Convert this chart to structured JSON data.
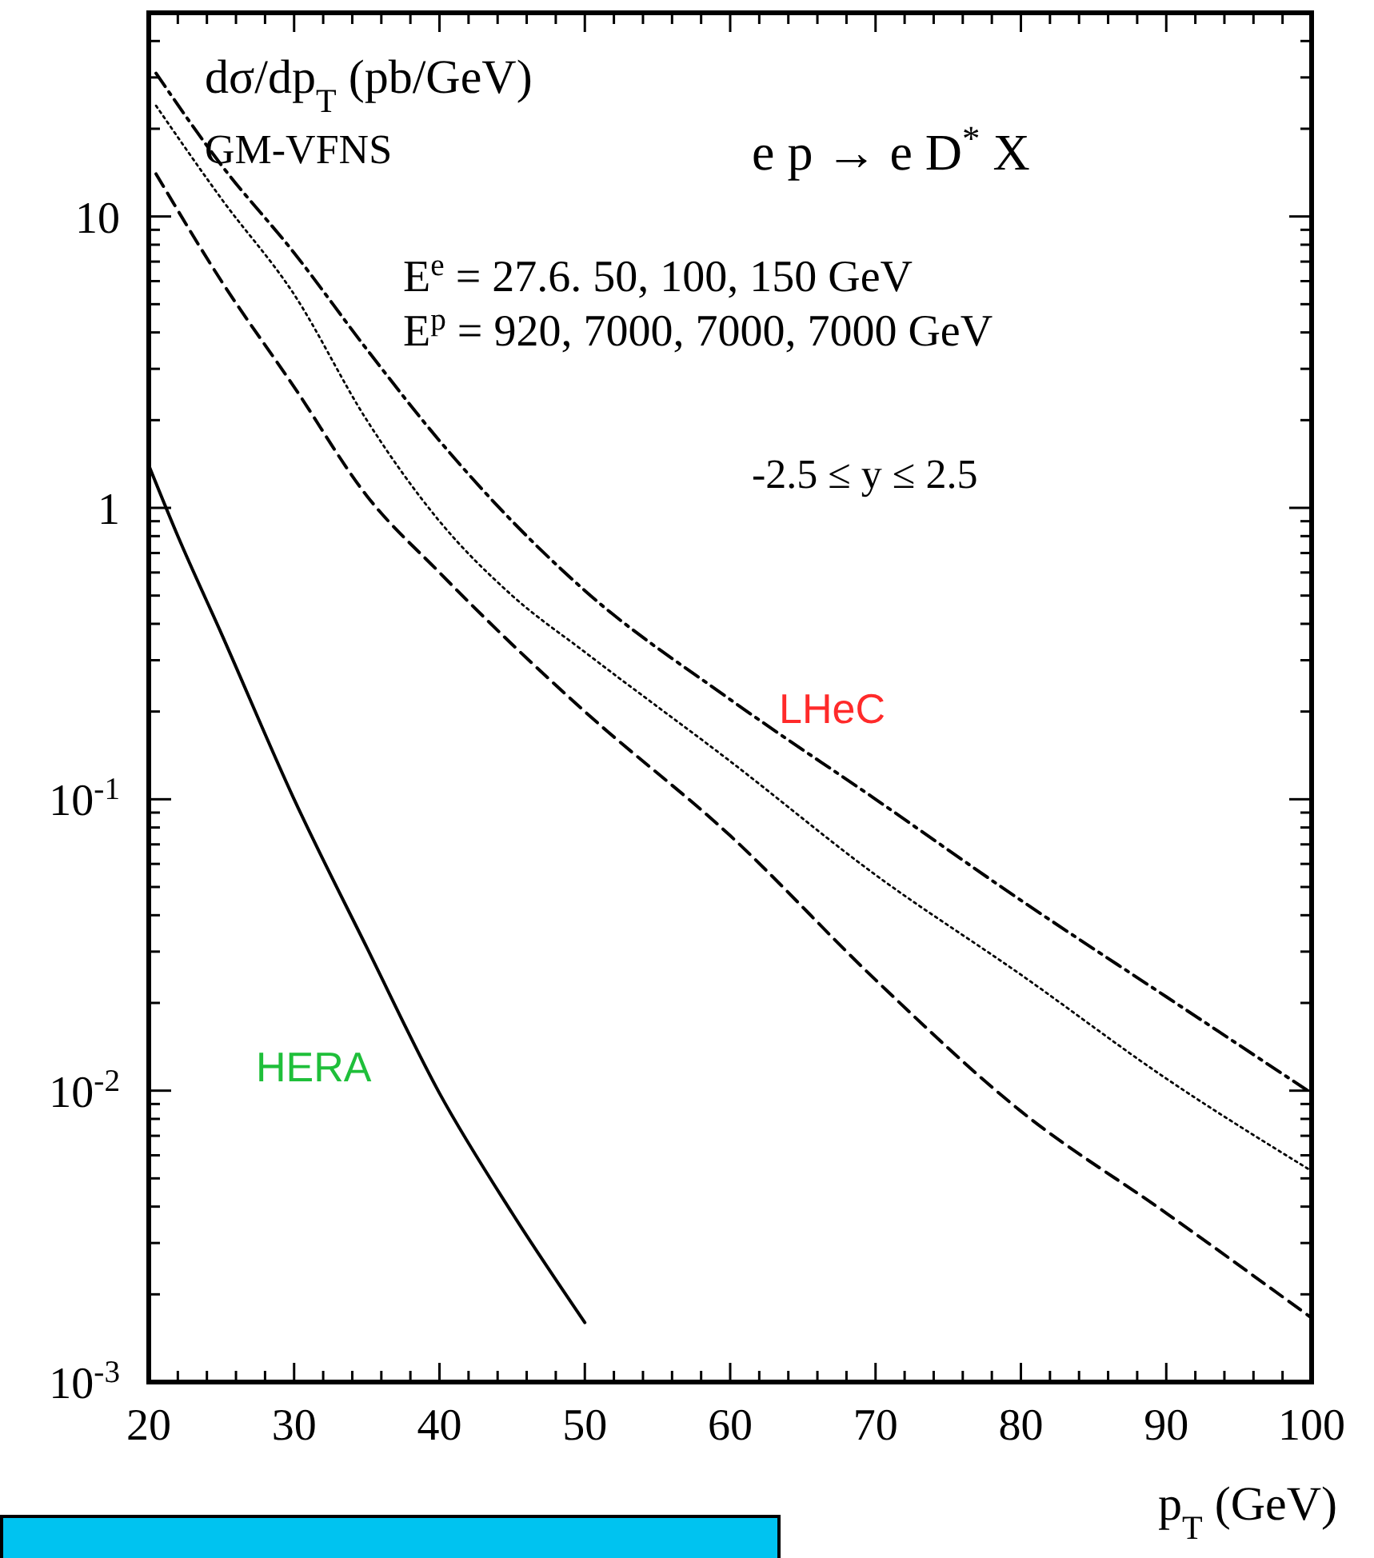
{
  "chart_data": {
    "type": "line",
    "ylabel": "dσ/dp$_{T}$ (pb/GeV)",
    "xlabel": "p$_{T}$ (GeV)",
    "log": "y",
    "xlim": [
      20,
      100
    ],
    "ylim": [
      0.001,
      50
    ],
    "xticks": [
      20,
      {
        "value": 22,
        "label": null
      },
      {
        "value": 24,
        "label": null
      },
      {
        "value": 26,
        "label": null
      },
      {
        "value": 28,
        "label": null
      },
      30,
      {
        "value": 32,
        "label": null
      },
      {
        "value": 34,
        "label": null
      },
      {
        "value": 36,
        "label": null
      },
      {
        "value": 38,
        "label": null
      },
      40,
      {
        "value": 42,
        "label": null
      },
      {
        "value": 44,
        "label": null
      },
      {
        "value": 46,
        "label": null
      },
      {
        "value": 48,
        "label": null
      },
      50,
      {
        "value": 52,
        "label": null
      },
      {
        "value": 54,
        "label": null
      },
      {
        "value": 56,
        "label": null
      },
      {
        "value": 58,
        "label": null
      },
      60,
      {
        "value": 62,
        "label": null
      },
      {
        "value": 64,
        "label": null
      },
      {
        "value": 66,
        "label": null
      },
      {
        "value": 68,
        "label": null
      },
      70,
      {
        "value": 72,
        "label": null
      },
      {
        "value": 74,
        "label": null
      },
      {
        "value": 76,
        "label": null
      },
      {
        "value": 78,
        "label": null
      },
      80,
      {
        "value": 82,
        "label": null
      },
      {
        "value": 84,
        "label": null
      },
      {
        "value": 86,
        "label": null
      },
      {
        "value": 88,
        "label": null
      },
      90,
      {
        "value": 92,
        "label": null
      },
      {
        "value": 94,
        "label": null
      },
      {
        "value": 96,
        "label": null
      },
      {
        "value": 98,
        "label": null
      },
      100
    ],
    "yticks": [
      {
        "value": 0.001,
        "label": "10$^{-3}$"
      },
      {
        "value": 0.002,
        "label": null
      },
      {
        "value": 0.003,
        "label": null
      },
      {
        "value": 0.004,
        "label": null
      },
      {
        "value": 0.005,
        "label": null
      },
      {
        "value": 0.006,
        "label": null
      },
      {
        "value": 0.007,
        "label": null
      },
      {
        "value": 0.008,
        "label": null
      },
      {
        "value": 0.009,
        "label": null
      },
      {
        "value": 0.01,
        "label": "10$^{-2}$"
      },
      {
        "value": 0.02,
        "label": null
      },
      {
        "value": 0.03,
        "label": null
      },
      {
        "value": 0.04,
        "label": null
      },
      {
        "value": 0.05,
        "label": null
      },
      {
        "value": 0.06,
        "label": null
      },
      {
        "value": 0.07,
        "label": null
      },
      {
        "value": 0.08,
        "label": null
      },
      {
        "value": 0.09,
        "label": null
      },
      {
        "value": 0.1,
        "label": "10$^{-1}$"
      },
      {
        "value": 0.2,
        "label": null
      },
      {
        "value": 0.3,
        "label": null
      },
      {
        "value": 0.4,
        "label": null
      },
      {
        "value": 0.5,
        "label": null
      },
      {
        "value": 0.6,
        "label": null
      },
      {
        "value": 0.7,
        "label": null
      },
      {
        "value": 0.8,
        "label": null
      },
      {
        "value": 0.9,
        "label": null
      },
      1,
      {
        "value": 2,
        "label": null
      },
      {
        "value": 3,
        "label": null
      },
      {
        "value": 4,
        "label": null
      },
      {
        "value": 5,
        "label": null
      },
      {
        "value": 6,
        "label": null
      },
      {
        "value": 7,
        "label": null
      },
      {
        "value": 8,
        "label": null
      },
      {
        "value": 9,
        "label": null
      },
      10,
      {
        "value": 20,
        "label": null
      },
      {
        "value": 30,
        "label": null
      },
      {
        "value": 40,
        "label": null
      },
      {
        "value": 50,
        "label": null
      }
    ],
    "series": [
      {
        "color": "#000000",
        "line_style": "solid",
        "x": [
          20,
          22,
          25,
          30,
          35,
          40,
          45,
          50
        ],
        "values": [
          1.4,
          0.8,
          0.37,
          0.1,
          0.031,
          0.0098,
          0.0038,
          0.0016
        ]
      },
      {
        "color": "#000000",
        "line_style": "dashdot",
        "x": [
          20.5,
          25,
          30,
          35,
          40,
          45,
          50,
          60,
          70,
          80,
          90,
          100
        ],
        "values": [
          31,
          15,
          7.5,
          3.5,
          1.7,
          0.9,
          0.52,
          0.22,
          0.1,
          0.045,
          0.021,
          0.0098
        ]
      },
      {
        "color": "#000000",
        "line_style": "dotted",
        "x": [
          20.5,
          25,
          30,
          35,
          40,
          45,
          50,
          60,
          70,
          80,
          90,
          100
        ],
        "values": [
          24,
          11.5,
          5.4,
          2,
          0.9,
          0.5,
          0.32,
          0.135,
          0.055,
          0.025,
          0.011,
          0.0053
        ]
      },
      {
        "color": "#000000",
        "line_style": "dashed",
        "x": [
          20.5,
          25,
          30,
          35,
          40,
          45,
          50,
          60,
          70,
          80,
          90,
          100
        ],
        "values": [
          14,
          6,
          2.6,
          1.1,
          0.6,
          0.34,
          0.2,
          0.075,
          0.024,
          0.0085,
          0.0038,
          0.00166
        ]
      }
    ],
    "annotations": [
      "GM-VFNS",
      "e p → e D$^{*}$ X",
      "E$^{e}$ = 27.6. 50, 100, 150 GeV",
      "E$^{p}$ = 920, 7000, 7000, 7000 GeV",
      "-2.5 ≤  y ≤ 2.5",
      "LHeC",
      "HERA"
    ]
  }
}
